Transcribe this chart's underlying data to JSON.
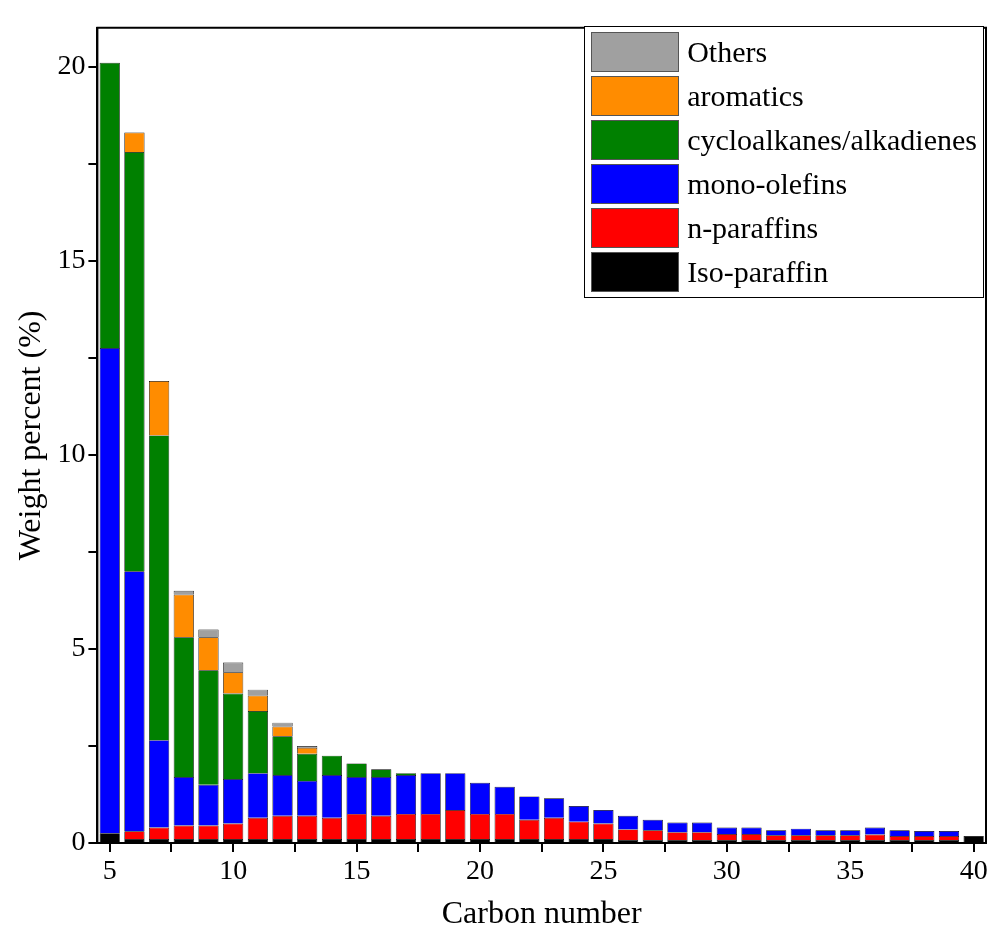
{
  "chart_data": {
    "type": "bar",
    "stacked": true,
    "xlabel": "Carbon number",
    "ylabel": "Weight percent (%)",
    "legend": "top right",
    "x": [
      5,
      6,
      7,
      8,
      9,
      10,
      11,
      12,
      13,
      14,
      15,
      16,
      17,
      18,
      19,
      20,
      21,
      22,
      23,
      24,
      25,
      26,
      27,
      28,
      29,
      30,
      31,
      32,
      33,
      34,
      35,
      36,
      37,
      38,
      39,
      40
    ],
    "xlim": [
      4.5,
      40.5
    ],
    "xticks": [
      5,
      {
        "value": 7.5,
        "label": null
      },
      10,
      {
        "value": 12.5,
        "label": null
      },
      15,
      {
        "value": 17.5,
        "label": null
      },
      20,
      {
        "value": 22.5,
        "label": null
      },
      25,
      {
        "value": 27.5,
        "label": null
      },
      30,
      {
        "value": 32.5,
        "label": null
      },
      35,
      {
        "value": 37.5,
        "label": null
      },
      40
    ],
    "ylim": [
      0,
      21
    ],
    "yticks": [
      0,
      {
        "value": 2.5,
        "label": null
      },
      5,
      {
        "value": 7.5,
        "label": null
      },
      10,
      {
        "value": 12.5,
        "label": null
      },
      15,
      {
        "value": 17.5,
        "label": null
      },
      20
    ],
    "series": [
      {
        "name": "Iso-paraffin",
        "color": "#000000",
        "values": [
          0.25,
          0.1,
          0.1,
          0.1,
          0.1,
          0.1,
          0.1,
          0.1,
          0.1,
          0.1,
          0.1,
          0.1,
          0.1,
          0.1,
          0.1,
          0.1,
          0.1,
          0.1,
          0.1,
          0.1,
          0.1,
          0.08,
          0.08,
          0.08,
          0.08,
          0.08,
          0.08,
          0.08,
          0.08,
          0.08,
          0.08,
          0.08,
          0.08,
          0.08,
          0.08,
          0.18
        ]
      },
      {
        "name": "n-paraffins",
        "color": "#ff0000",
        "values": [
          0,
          0.2,
          0.3,
          0.35,
          0.35,
          0.4,
          0.55,
          0.6,
          0.6,
          0.55,
          0.65,
          0.6,
          0.65,
          0.65,
          0.75,
          0.65,
          0.65,
          0.5,
          0.55,
          0.45,
          0.4,
          0.27,
          0.25,
          0.2,
          0.2,
          0.15,
          0.15,
          0.12,
          0.12,
          0.12,
          0.12,
          0.14,
          0.1,
          0.1,
          0.1,
          0
        ]
      },
      {
        "name": "mono-olefins",
        "color": "#0000ff",
        "values": [
          12.5,
          6.7,
          2.25,
          1.25,
          1.05,
          1.15,
          1.15,
          1.05,
          0.9,
          1.1,
          0.95,
          1.0,
          1.0,
          1.05,
          0.95,
          0.8,
          0.7,
          0.6,
          0.5,
          0.4,
          0.35,
          0.35,
          0.27,
          0.25,
          0.25,
          0.17,
          0.17,
          0.13,
          0.17,
          0.13,
          0.13,
          0.18,
          0.15,
          0.13,
          0.13,
          0
        ]
      },
      {
        "name": "cycloalkanes/alkadienes",
        "color": "#008000",
        "values": [
          7.35,
          10.8,
          7.85,
          3.6,
          2.95,
          2.2,
          1.6,
          1.0,
          0.7,
          0.5,
          0.35,
          0.2,
          0.05,
          0,
          0,
          0,
          0,
          0,
          0,
          0,
          0,
          0,
          0,
          0,
          0,
          0,
          0,
          0,
          0,
          0,
          0,
          0,
          0,
          0,
          0,
          0
        ]
      },
      {
        "name": "aromatics",
        "color": "#ff8c00",
        "values": [
          0,
          0.5,
          1.4,
          1.1,
          0.85,
          0.55,
          0.4,
          0.25,
          0.15,
          0,
          0,
          0,
          0,
          0,
          0,
          0,
          0,
          0,
          0,
          0,
          0,
          0,
          0,
          0,
          0,
          0,
          0,
          0,
          0,
          0,
          0,
          0,
          0,
          0,
          0,
          0
        ]
      },
      {
        "name": "Others",
        "color": "#a0a0a0",
        "values": [
          0,
          0,
          0,
          0.1,
          0.2,
          0.25,
          0.15,
          0.1,
          0.05,
          0,
          0,
          0,
          0,
          0,
          0,
          0,
          0,
          0,
          0,
          0,
          0,
          0,
          0,
          0,
          0,
          0,
          0,
          0,
          0,
          0,
          0,
          0,
          0,
          0,
          0,
          0
        ]
      }
    ]
  }
}
